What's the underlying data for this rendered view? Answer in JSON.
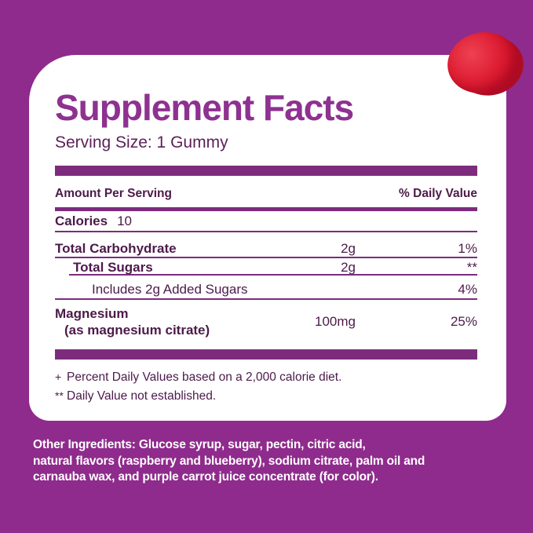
{
  "colors": {
    "background": "#8f2b8c",
    "card": "#ffffff",
    "accent_bar": "#7d2b7d",
    "title": "#8e3191",
    "table_text": "#4c1a4a",
    "ingredients_text": "#ffffff",
    "gummy_red": "#d2122a"
  },
  "header": {
    "title": "Supplement Facts",
    "serving_size": "Serving Size: 1 Gummy"
  },
  "table": {
    "columns": {
      "amount_header": "Amount Per Serving",
      "dv_header": "% Daily Value"
    },
    "rows": [
      {
        "label": "Calories",
        "value_inline": "10"
      },
      {
        "label": "Total Carbohydrate",
        "amount": "2g",
        "dv": "1%"
      },
      {
        "label": "Total Sugars",
        "amount": "2g",
        "dv": "**"
      },
      {
        "label": "Includes 2g Added Sugars",
        "dv": "4%"
      },
      {
        "label": "Magnesium",
        "sublabel": "(as magnesium citrate)",
        "amount": "100mg",
        "dv": "25%"
      }
    ],
    "footnotes": [
      {
        "symbol": "+",
        "text": "Percent Daily Values based on a 2,000 calorie diet."
      },
      {
        "symbol": "**",
        "text": "Daily Value not established."
      }
    ]
  },
  "other_ingredients": {
    "label": "Other Ingredients:",
    "text": " Glucose syrup, sugar, pectin, citric acid,\nnatural flavors (raspberry and blueberry), sodium citrate, palm oil and\ncarnauba wax, and purple carrot juice concentrate (for color)."
  },
  "decoration": {
    "gummy_alt": "red gummy"
  }
}
